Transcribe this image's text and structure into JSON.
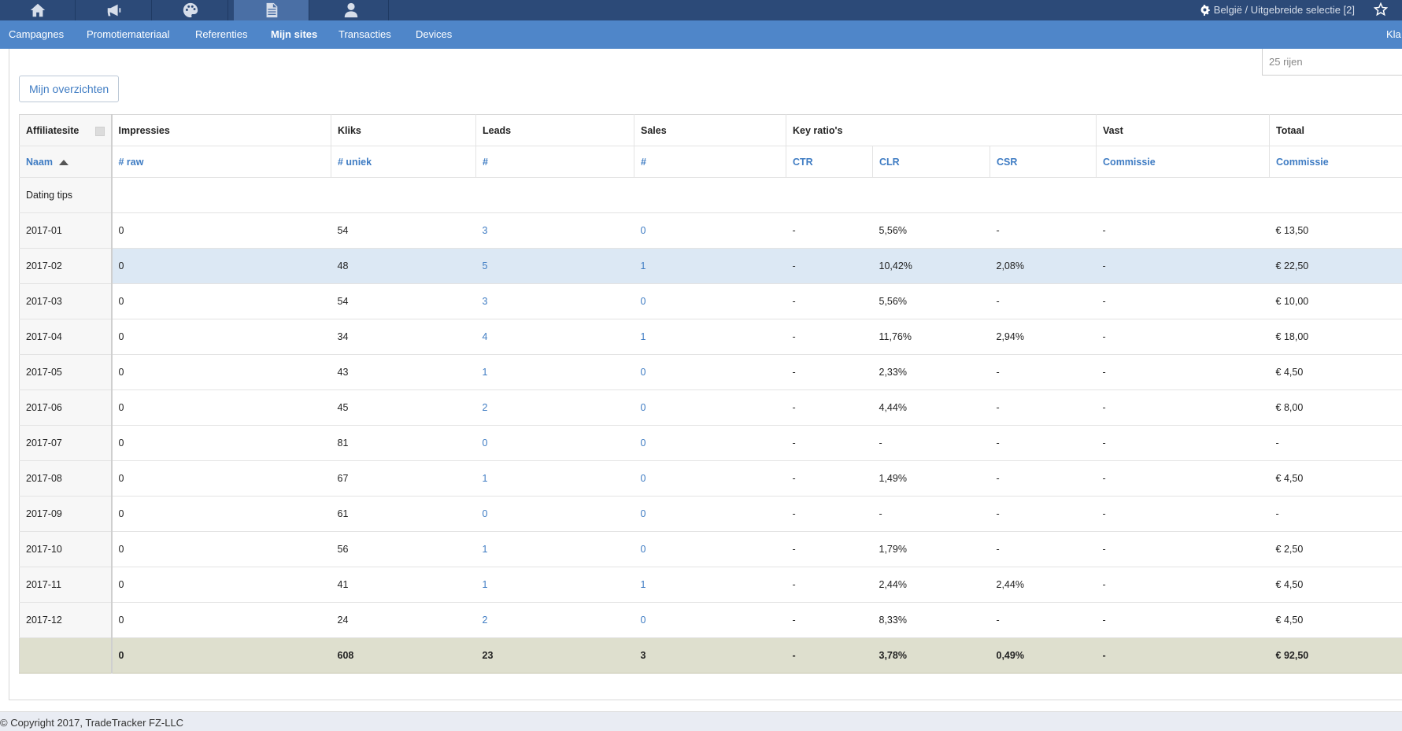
{
  "topbar": {
    "tabs": [
      {
        "icon": "home-icon"
      },
      {
        "icon": "megaphone-icon"
      },
      {
        "icon": "palette-icon"
      },
      {
        "icon": "document-icon",
        "active": true
      },
      {
        "icon": "user-icon"
      }
    ],
    "country_label": "België / Uitgebreide selectie [2]",
    "settings_icon": "gear-icon",
    "favorite_icon": "star-icon"
  },
  "nav": {
    "items": [
      "Campagnes",
      "Promotiemateriaal",
      "Referenties",
      "Mijn sites",
      "Transacties",
      "Devices"
    ],
    "active": "Mijn sites",
    "right_label": "Kla"
  },
  "toolbar": {
    "overview_button": "Mijn overzichten",
    "rows_select": "25 rijen"
  },
  "table": {
    "header_groups": [
      "Affiliatesite",
      "Impressies",
      "Kliks",
      "Leads",
      "Sales",
      "Key ratio's",
      "Vast",
      "Totaal"
    ],
    "subheaders": [
      "Naam",
      "# raw",
      "# uniek",
      "#",
      "#",
      "CTR",
      "CLR",
      "CSR",
      "Commissie",
      "Commissie"
    ],
    "group_label": "Dating tips",
    "rows": [
      [
        "2017-01",
        "0",
        "54",
        "3",
        "0",
        "-",
        "5,56%",
        "-",
        "-",
        "€ 13,50"
      ],
      [
        "2017-02",
        "0",
        "48",
        "5",
        "1",
        "-",
        "10,42%",
        "2,08%",
        "-",
        "€ 22,50"
      ],
      [
        "2017-03",
        "0",
        "54",
        "3",
        "0",
        "-",
        "5,56%",
        "-",
        "-",
        "€ 10,00"
      ],
      [
        "2017-04",
        "0",
        "34",
        "4",
        "1",
        "-",
        "11,76%",
        "2,94%",
        "-",
        "€ 18,00"
      ],
      [
        "2017-05",
        "0",
        "43",
        "1",
        "0",
        "-",
        "2,33%",
        "-",
        "-",
        "€ 4,50"
      ],
      [
        "2017-06",
        "0",
        "45",
        "2",
        "0",
        "-",
        "4,44%",
        "-",
        "-",
        "€ 8,00"
      ],
      [
        "2017-07",
        "0",
        "81",
        "0",
        "0",
        "-",
        "-",
        "-",
        "-",
        "-"
      ],
      [
        "2017-08",
        "0",
        "67",
        "1",
        "0",
        "-",
        "1,49%",
        "-",
        "-",
        "€ 4,50"
      ],
      [
        "2017-09",
        "0",
        "61",
        "0",
        "0",
        "-",
        "-",
        "-",
        "-",
        "-"
      ],
      [
        "2017-10",
        "0",
        "56",
        "1",
        "0",
        "-",
        "1,79%",
        "-",
        "-",
        "€ 2,50"
      ],
      [
        "2017-11",
        "0",
        "41",
        "1",
        "1",
        "-",
        "2,44%",
        "2,44%",
        "-",
        "€ 4,50"
      ],
      [
        "2017-12",
        "0",
        "24",
        "2",
        "0",
        "-",
        "8,33%",
        "-",
        "-",
        "€ 4,50"
      ]
    ],
    "totals": [
      "",
      "0",
      "608",
      "23",
      "3",
      "-",
      "3,78%",
      "0,49%",
      "-",
      "€ 92,50"
    ],
    "colors": {
      "link": "#3f7cc3",
      "highlight_row": "#dce8f4",
      "total_row": "#dedfce"
    }
  },
  "footer": {
    "copyright": "© Copyright 2017, TradeTracker FZ-LLC"
  }
}
